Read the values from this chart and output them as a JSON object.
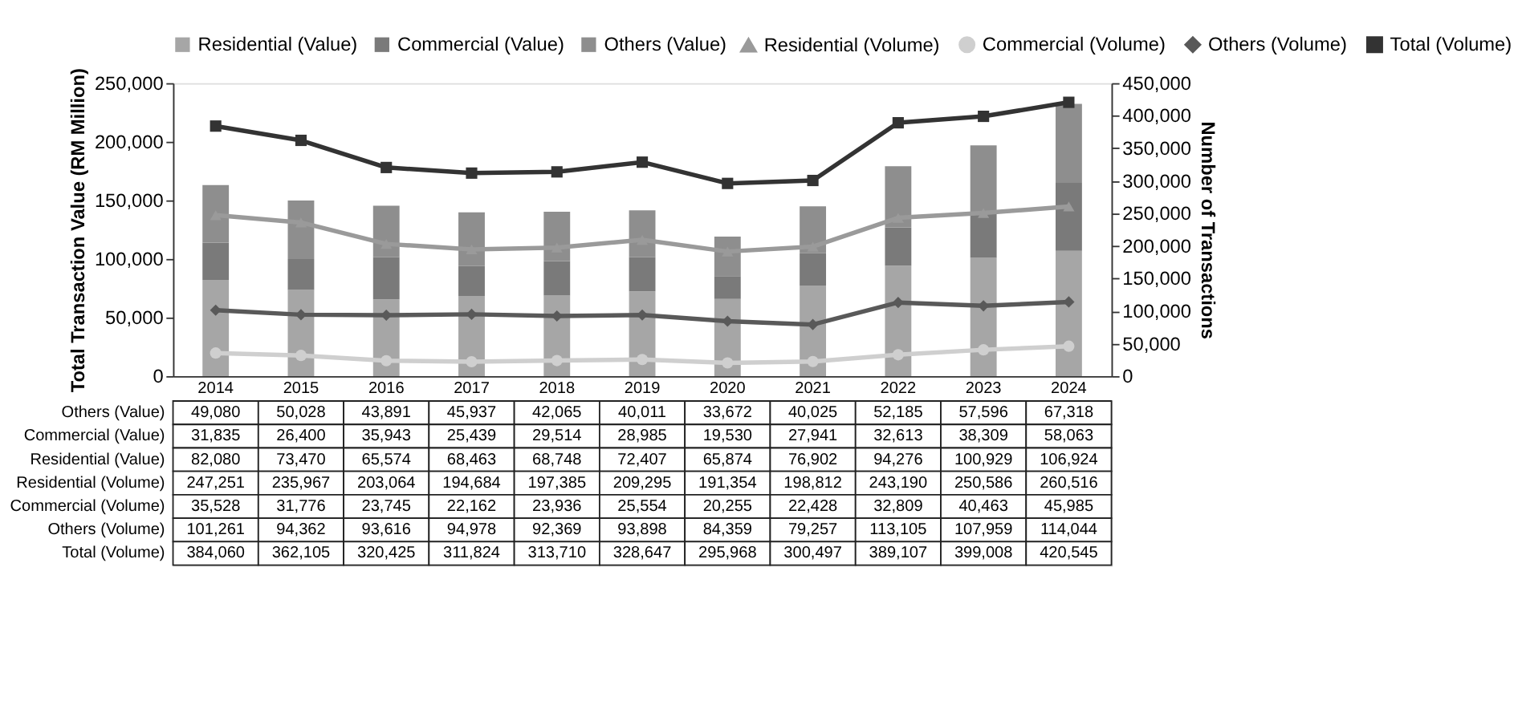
{
  "chart_data": {
    "type": "bar",
    "stacked": true,
    "ylabel": "Total Transaction Value (RM Million)",
    "y2label": "Number of Transactions",
    "categories": [
      "2014",
      "2015",
      "2016",
      "2017",
      "2018",
      "2019",
      "2020",
      "2021",
      "2022",
      "2023",
      "2024"
    ],
    "series": [
      {
        "name": "Residential (Value)",
        "color": "#a6a6a6",
        "values": [
          82080,
          73470,
          65574,
          68463,
          68748,
          72407,
          65874,
          76902,
          94276,
          100929,
          106924
        ],
        "value_labels": [
          "82,080",
          "73,470",
          "65,574",
          "68,463",
          "68,748",
          "72,407",
          "65,874",
          "76,902",
          "94,276",
          "100,929",
          "106,924"
        ]
      },
      {
        "name": "Commercial (Value)",
        "color": "#7a7a7a",
        "values": [
          31835,
          26400,
          35943,
          25439,
          29514,
          28985,
          19530,
          27941,
          32613,
          38309,
          58063
        ],
        "value_labels": [
          "31,835",
          "26,400",
          "35,943",
          "25,439",
          "29,514",
          "28,985",
          "19,530",
          "27,941",
          "32,613",
          "38,309",
          "58,063"
        ]
      },
      {
        "name": "Others (Value)",
        "color": "#8e8e8e",
        "values": [
          49080,
          50028,
          43891,
          45937,
          42065,
          40011,
          33672,
          40025,
          52185,
          57596,
          67318
        ],
        "value_labels": [
          "49,080",
          "50,028",
          "43,891",
          "45,937",
          "42,065",
          "40,011",
          "33,672",
          "40,025",
          "52,185",
          "57,596",
          "67,318"
        ]
      },
      {
        "name": "Residential (Volume)",
        "type": "line",
        "axis": "y2",
        "marker": "triangle",
        "color": "#9a9a9a",
        "values": [
          247251,
          235967,
          203064,
          194684,
          197385,
          209295,
          191354,
          198812,
          243190,
          250586,
          260516
        ],
        "value_labels": [
          "247,251",
          "235,967",
          "203,064",
          "194,684",
          "197,385",
          "209,295",
          "191,354",
          "198,812",
          "243,190",
          "250,586",
          "260,516"
        ]
      },
      {
        "name": "Commercial (Volume)",
        "type": "line",
        "axis": "y2",
        "marker": "circle",
        "color": "#cfcfcf",
        "values": [
          35528,
          31776,
          23745,
          22162,
          23936,
          25554,
          20255,
          22428,
          32809,
          40463,
          45985
        ],
        "value_labels": [
          "35,528",
          "31,776",
          "23,745",
          "22,162",
          "23,936",
          "25,554",
          "20,255",
          "22,428",
          "32,809",
          "40,463",
          "45,985"
        ]
      },
      {
        "name": "Others (Volume)",
        "type": "line",
        "axis": "y2",
        "marker": "diamond",
        "color": "#595959",
        "values": [
          101261,
          94362,
          93616,
          94978,
          92369,
          93898,
          84359,
          79257,
          113105,
          107959,
          114044
        ],
        "value_labels": [
          "101,261",
          "94,362",
          "93,616",
          "94,978",
          "92,369",
          "93,898",
          "84,359",
          "79,257",
          "113,105",
          "107,959",
          "114,044"
        ]
      },
      {
        "name": "Total (Volume)",
        "type": "line",
        "axis": "y2",
        "marker": "square",
        "color": "#333333",
        "values": [
          384060,
          362105,
          320425,
          311824,
          313710,
          328647,
          295968,
          300497,
          389107,
          399008,
          420545
        ],
        "value_labels": [
          "384,060",
          "362,105",
          "320,425",
          "311,824",
          "313,710",
          "328,647",
          "295,968",
          "300,497",
          "389,107",
          "399,008",
          "420,545"
        ]
      }
    ],
    "ylim": [
      0,
      250000
    ],
    "yticks": [
      {
        "value": 0,
        "label": "0"
      },
      {
        "value": 50000,
        "label": "50,000"
      },
      {
        "value": 100000,
        "label": "100,000"
      },
      {
        "value": 150000,
        "label": "150,000"
      },
      {
        "value": 200000,
        "label": "200,000"
      },
      {
        "value": 250000,
        "label": "250,000"
      }
    ],
    "y2lim": [
      0,
      450000
    ],
    "y2ticks": [
      {
        "value": 0,
        "label": "0"
      },
      {
        "value": 50000,
        "label": "50,000"
      },
      {
        "value": 100000,
        "label": "100,000"
      },
      {
        "value": 150000,
        "label": "150,000"
      },
      {
        "value": 200000,
        "label": "200,000"
      },
      {
        "value": 250000,
        "label": "250,000"
      },
      {
        "value": 300000,
        "label": "300,000"
      },
      {
        "value": 350000,
        "label": "350,000"
      },
      {
        "value": 400000,
        "label": "400,000"
      },
      {
        "value": 450000,
        "label": "450,000"
      }
    ],
    "grid": false,
    "legend": "top",
    "line_style": "solid"
  }
}
